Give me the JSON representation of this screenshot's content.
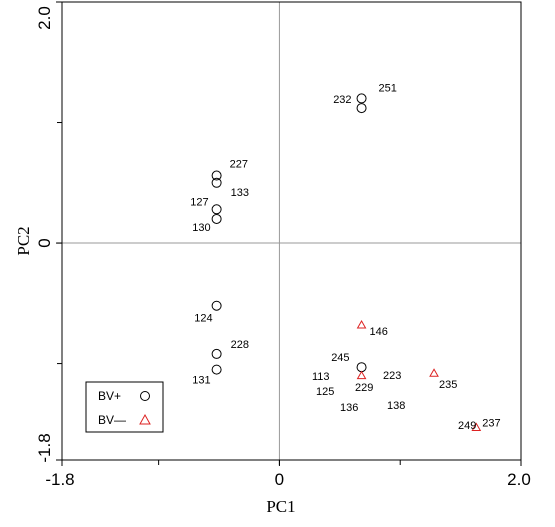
{
  "chart_data": {
    "type": "scatter",
    "xlabel": "PC1",
    "ylabel": "PC2",
    "xlim": [
      -1.8,
      2.0
    ],
    "ylim": [
      -1.8,
      2.0
    ],
    "x_ticks": [
      -1.8,
      0,
      2.0
    ],
    "x_tick_labels": [
      "-1.8",
      "0",
      "2.0"
    ],
    "y_ticks": [
      -1.8,
      0,
      2.0
    ],
    "y_tick_labels": [
      "-1.8",
      "0",
      "2.0"
    ],
    "reference_lines": {
      "x": 0,
      "y": 0
    },
    "legend": {
      "placement": "bottom-left",
      "entries": [
        {
          "label": "BV+",
          "marker": "circle",
          "color": "#000000"
        },
        {
          "label": "BV—",
          "marker": "triangle",
          "color": "#dd2222"
        }
      ]
    },
    "series": [
      {
        "name": "BV+",
        "marker": "circle",
        "color": "#000000",
        "points": [
          {
            "x": 0.68,
            "y": 1.2,
            "label": "251"
          },
          {
            "x": 0.68,
            "y": 1.12,
            "label": "232"
          },
          {
            "x": -0.52,
            "y": 0.56,
            "label": "227"
          },
          {
            "x": -0.52,
            "y": 0.5,
            "label": "133"
          },
          {
            "x": -0.52,
            "y": 0.28,
            "label": "127"
          },
          {
            "x": -0.52,
            "y": 0.2,
            "label": "130"
          },
          {
            "x": -0.52,
            "y": -0.52,
            "label": "124"
          },
          {
            "x": -0.52,
            "y": -0.92,
            "label": "228"
          },
          {
            "x": -0.52,
            "y": -1.05,
            "label": "131"
          },
          {
            "x": 0.68,
            "y": -1.03,
            "label": "245"
          }
        ]
      },
      {
        "name": "BV—",
        "marker": "triangle",
        "color": "#dd2222",
        "points": [
          {
            "x": 0.68,
            "y": -0.68,
            "label": "146"
          },
          {
            "x": 0.68,
            "y": -1.1,
            "label": ""
          },
          {
            "x": 1.28,
            "y": -1.08,
            "label": "235"
          },
          {
            "x": 1.63,
            "y": -1.53,
            "label": "237"
          }
        ]
      }
    ],
    "annotations": [
      "113",
      "125",
      "229",
      "223",
      "136",
      "138",
      "249"
    ]
  }
}
